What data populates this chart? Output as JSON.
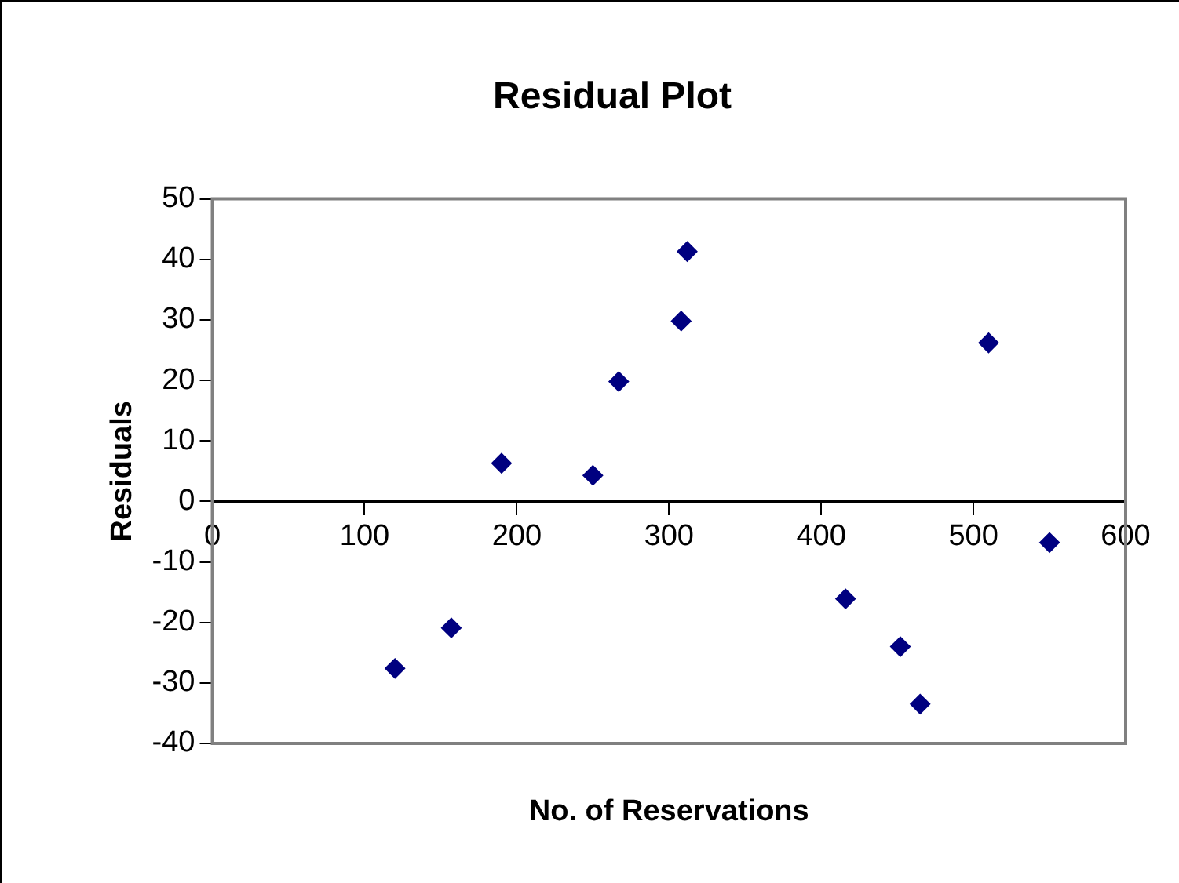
{
  "chart_data": {
    "type": "scatter",
    "title": "Residual Plot",
    "xlabel": "No. of Reservations",
    "ylabel": "Residuals",
    "x": [
      120,
      157,
      190,
      250,
      267,
      308,
      312,
      416,
      452,
      465,
      510,
      550
    ],
    "series": [
      {
        "color": "#000080",
        "values": [
          -27.6,
          -20.9,
          6.3,
          4.3,
          19.8,
          29.8,
          41.3,
          -16.1,
          -24,
          -33.5,
          26.2,
          -6.8
        ]
      }
    ],
    "xlim": [
      0,
      600
    ],
    "xticks": [
      0,
      100,
      200,
      300,
      400,
      500,
      600
    ],
    "ylim": [
      -40,
      50
    ],
    "yticks": [
      -40,
      -30,
      -20,
      -10,
      0,
      10,
      20,
      30,
      40,
      50
    ],
    "grid": false,
    "legend": false,
    "marker": "diamond"
  }
}
